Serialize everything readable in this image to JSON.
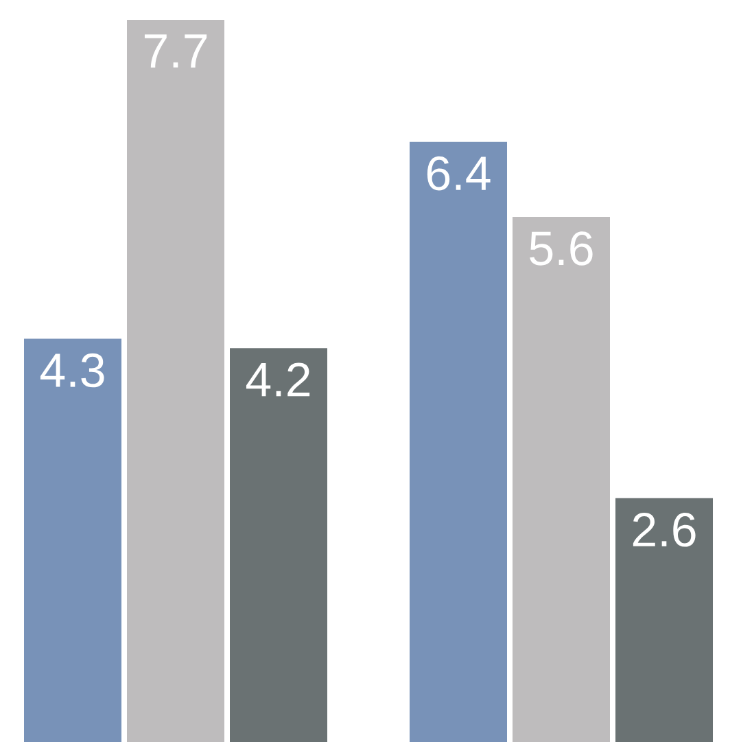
{
  "chart_data": {
    "type": "bar",
    "categories": [
      null,
      null
    ],
    "series": [
      {
        "color": "#7892b8",
        "values": [
          4.3,
          6.4
        ]
      },
      {
        "color": "#bebcbd",
        "values": [
          7.7,
          5.6
        ]
      },
      {
        "color": "#6a7273",
        "values": [
          4.2,
          2.6
        ]
      }
    ],
    "data_labels": true
  }
}
